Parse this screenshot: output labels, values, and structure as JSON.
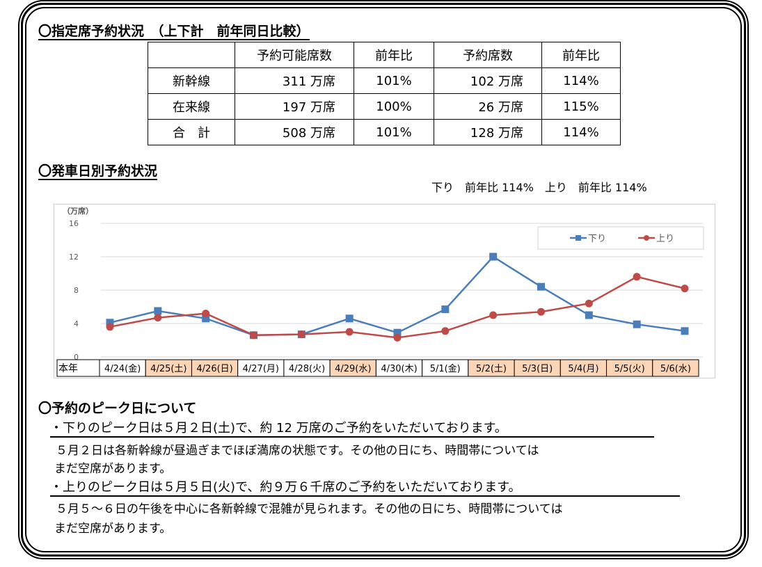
{
  "section1": {
    "title": "〇指定席予約状況　（上下計　前年同日比較）",
    "headers": [
      "",
      "予約可能席数",
      "前年比",
      "予約席数",
      "前年比"
    ],
    "rows": [
      [
        "新幹線",
        "311 万席",
        "101%",
        "102 万席",
        "114%"
      ],
      [
        "在来線",
        "197 万席",
        "100%",
        "26 万席",
        "115%"
      ],
      [
        "合　計",
        "508 万席",
        "101%",
        "128 万席",
        "114%"
      ]
    ]
  },
  "section2": {
    "title": "〇発車日別予約状況",
    "summary": "下り　前年比 114%　上り　前年比 114%"
  },
  "chart_data": {
    "type": "line",
    "ylabel": "（万席）",
    "ylim": [
      0,
      16
    ],
    "yticks": [
      "0",
      "4",
      "8",
      "12",
      "16"
    ],
    "grid": true,
    "legend": "top-right",
    "row_label": "本年",
    "categories": [
      "4/24(金)",
      "4/25(土)",
      "4/26(日)",
      "4/27(月)",
      "4/28(火)",
      "4/29(水)",
      "4/30(木)",
      "5/1(金)",
      "5/2(土)",
      "5/3(日)",
      "5/4(月)",
      "5/5(火)",
      "5/6(水)"
    ],
    "holiday": [
      false,
      true,
      true,
      false,
      false,
      true,
      false,
      false,
      true,
      true,
      true,
      true,
      true
    ],
    "series": [
      {
        "name": "下り",
        "color": "#4a7ebb",
        "marker": "square",
        "values": [
          4.1,
          5.5,
          4.6,
          2.6,
          2.7,
          4.6,
          2.9,
          5.7,
          12.0,
          8.4,
          5.0,
          3.9,
          3.1
        ]
      },
      {
        "name": "上り",
        "color": "#be4b48",
        "marker": "circle",
        "values": [
          3.6,
          4.7,
          5.2,
          2.6,
          2.7,
          3.0,
          2.3,
          3.1,
          5.0,
          5.4,
          6.4,
          9.6,
          8.2
        ]
      }
    ],
    "holiday_color": "#fbd5b5"
  },
  "section3": {
    "title": "〇予約のピーク日について",
    "lines": [
      "・下りのピーク日は５月２日(土)で、約 12 万席のご予約をいただいております。",
      "５月２日は各新幹線が昼過ぎまでほぼ満席の状態です。その他の日にち、時間帯については",
      "まだ空席があります。",
      "・上りのピーク日は５月５日(火)で、約９万６千席のご予約をいただいております。",
      "５月５～６日の午後を中心に各新幹線で混雑が見られます。その他の日にち、時間帯については",
      "まだ空席があります。"
    ]
  }
}
